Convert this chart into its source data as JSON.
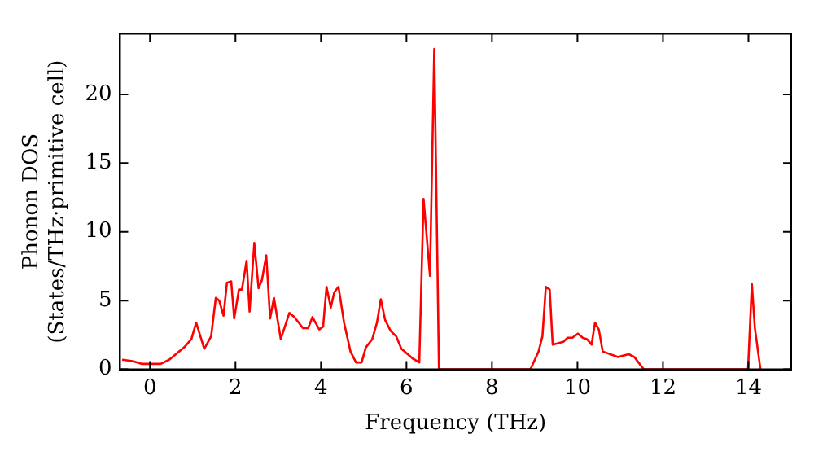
{
  "chart_data": {
    "type": "line",
    "xlabel": "Frequency (THz)",
    "ylabel": "Phonon DOS\n(States/THz·primitive cell)",
    "xlim": [
      -0.7,
      15
    ],
    "ylim": [
      0,
      24.4
    ],
    "xticks": [
      0,
      2,
      4,
      6,
      8,
      10,
      12,
      14
    ],
    "yticks": [
      0,
      5,
      10,
      15,
      20
    ],
    "grid": false,
    "legend": false,
    "marker": "none",
    "line_style": "solid",
    "series": [
      {
        "color": "#ff0000",
        "x": [
          -0.65,
          -0.4,
          -0.2,
          0.25,
          0.45,
          0.8,
          0.97,
          1.08,
          1.27,
          1.43,
          1.54,
          1.62,
          1.72,
          1.8,
          1.9,
          1.97,
          2.08,
          2.15,
          2.26,
          2.33,
          2.44,
          2.54,
          2.62,
          2.72,
          2.81,
          2.9,
          3.06,
          3.26,
          3.38,
          3.58,
          3.7,
          3.8,
          3.96,
          4.05,
          4.13,
          4.23,
          4.31,
          4.41,
          4.54,
          4.69,
          4.82,
          4.95,
          5.05,
          5.2,
          5.31,
          5.4,
          5.5,
          5.63,
          5.76,
          5.88,
          6.14,
          6.3,
          6.4,
          6.55,
          6.65,
          6.76,
          8.9,
          9.09,
          9.18,
          9.26,
          9.35,
          9.42,
          9.67,
          9.77,
          9.88,
          10.01,
          10.12,
          10.22,
          10.33,
          10.41,
          10.5,
          10.59,
          10.95,
          11.2,
          11.33,
          11.55,
          13.99,
          14.08,
          14.15,
          14.28
        ],
        "values": [
          0.7,
          0.6,
          0.4,
          0.4,
          0.7,
          1.6,
          2.2,
          3.4,
          1.5,
          2.4,
          5.2,
          5,
          3.9,
          6.3,
          6.4,
          3.7,
          5.8,
          5.8,
          7.9,
          4.2,
          9.2,
          5.9,
          6.5,
          8.3,
          3.7,
          5.2,
          2.2,
          4.1,
          3.8,
          3,
          3,
          3.8,
          2.9,
          3.1,
          6,
          4.5,
          5.6,
          6,
          3.4,
          1.3,
          0.5,
          0.5,
          1.6,
          2.2,
          3.4,
          5.1,
          3.6,
          2.8,
          2.4,
          1.5,
          0.8,
          0.5,
          12.4,
          6.8,
          23.3,
          0,
          0,
          1.3,
          2.4,
          6,
          5.8,
          1.8,
          2,
          2.3,
          2.3,
          2.6,
          2.3,
          2.2,
          1.8,
          3.4,
          2.9,
          1.3,
          0.9,
          1.1,
          0.9,
          0,
          0,
          6.2,
          3,
          0
        ]
      }
    ]
  }
}
